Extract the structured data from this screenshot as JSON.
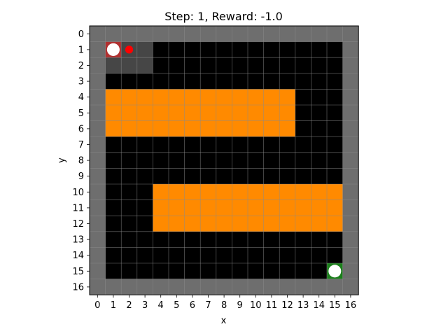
{
  "title": {
    "step_label": "Step:",
    "step": 1,
    "reward_label": "Reward:",
    "reward": "-1.0"
  },
  "axes": {
    "xlabel": "x",
    "ylabel": "y",
    "x_ticks": [
      "0",
      "1",
      "2",
      "3",
      "4",
      "5",
      "6",
      "7",
      "8",
      "9",
      "10",
      "11",
      "12",
      "13",
      "14",
      "15",
      "16"
    ],
    "y_ticks": [
      "0",
      "1",
      "2",
      "3",
      "4",
      "5",
      "6",
      "7",
      "8",
      "9",
      "10",
      "11",
      "12",
      "13",
      "14",
      "15",
      "16"
    ]
  },
  "grid": {
    "cols": 17,
    "rows": 17,
    "y_axis_inverted": true,
    "gridlines": true,
    "legend": [
      {
        "code": "W",
        "meaning": "wall",
        "color": "#6e6e6e"
      },
      {
        "code": "V",
        "meaning": "visited",
        "color": "#464646"
      },
      {
        "code": ".",
        "meaning": "floor",
        "color": "#000000"
      },
      {
        "code": "L",
        "meaning": "lava",
        "color": "#ff8a00"
      },
      {
        "code": "A",
        "meaning": "agent start",
        "color": "#b03030"
      },
      {
        "code": "G",
        "meaning": "goal",
        "color": "#1b7f1b"
      }
    ],
    "cells": [
      "WWWWWWWWWWWWWWWWW",
      "WAVV............W",
      "WVVV............W",
      "W...............W",
      "WLLLLLLLLLLLL...W",
      "WLLLLLLLLLLLL...W",
      "WLLLLLLLLLLLL...W",
      "W...............W",
      "W...............W",
      "W...............W",
      "W...LLLLLLLLLLLLW",
      "W...LLLLLLLLLLLLW",
      "W...LLLLLLLLLLLLW",
      "W...............W",
      "W...............W",
      "W..............GW",
      "WWWWWWWWWWWWWWWWW"
    ]
  },
  "markers": {
    "agent": {
      "x": 1,
      "y": 1,
      "icon": "white-circle",
      "color": "#ffffff"
    },
    "agent_next": {
      "x": 2,
      "y": 1,
      "icon": "red-dot",
      "color": "#ff0000"
    },
    "goal": {
      "x": 15,
      "y": 15,
      "icon": "white-circle",
      "color": "#ffffff"
    }
  },
  "colors": {
    "gridline": "#8a8a8a",
    "axes_frame": "#000000"
  }
}
